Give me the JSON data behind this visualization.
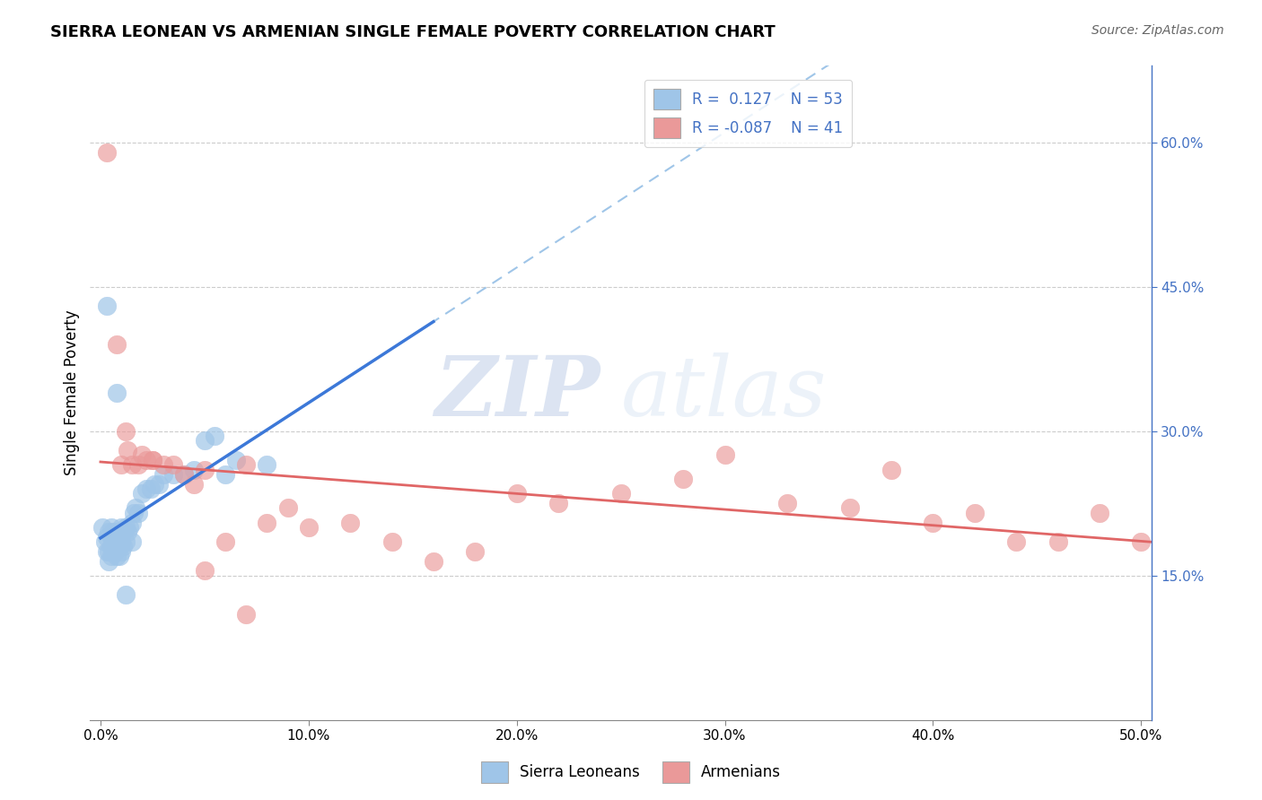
{
  "title": "SIERRA LEONEAN VS ARMENIAN SINGLE FEMALE POVERTY CORRELATION CHART",
  "source": "Source: ZipAtlas.com",
  "ylabel": "Single Female Poverty",
  "xlim": [
    -0.005,
    0.505
  ],
  "ylim": [
    0.0,
    0.68
  ],
  "x_ticks": [
    0.0,
    0.1,
    0.2,
    0.3,
    0.4,
    0.5
  ],
  "x_tick_labels": [
    "0.0%",
    "10.0%",
    "20.0%",
    "30.0%",
    "40.0%",
    "50.0%"
  ],
  "y_ticks_right": [
    0.15,
    0.3,
    0.45,
    0.6
  ],
  "y_tick_labels_right": [
    "15.0%",
    "30.0%",
    "45.0%",
    "60.0%"
  ],
  "blue_color": "#9fc5e8",
  "pink_color": "#ea9999",
  "blue_line_color": "#3c78d8",
  "pink_line_color": "#e06666",
  "blue_dashed_color": "#9fc5e8",
  "watermark_zip": "ZIP",
  "watermark_atlas": "atlas",
  "sierra_x": [
    0.001,
    0.002,
    0.003,
    0.003,
    0.004,
    0.004,
    0.004,
    0.005,
    0.005,
    0.005,
    0.005,
    0.006,
    0.006,
    0.006,
    0.007,
    0.007,
    0.007,
    0.008,
    0.008,
    0.009,
    0.009,
    0.009,
    0.01,
    0.01,
    0.01,
    0.011,
    0.011,
    0.012,
    0.012,
    0.013,
    0.014,
    0.015,
    0.015,
    0.016,
    0.017,
    0.018,
    0.02,
    0.022,
    0.024,
    0.026,
    0.028,
    0.03,
    0.035,
    0.04,
    0.045,
    0.05,
    0.055,
    0.06,
    0.065,
    0.08,
    0.003,
    0.008,
    0.012
  ],
  "sierra_y": [
    0.2,
    0.185,
    0.175,
    0.19,
    0.165,
    0.175,
    0.195,
    0.17,
    0.18,
    0.19,
    0.2,
    0.175,
    0.185,
    0.195,
    0.175,
    0.185,
    0.195,
    0.17,
    0.185,
    0.17,
    0.18,
    0.19,
    0.175,
    0.185,
    0.2,
    0.18,
    0.195,
    0.185,
    0.2,
    0.195,
    0.2,
    0.185,
    0.205,
    0.215,
    0.22,
    0.215,
    0.235,
    0.24,
    0.24,
    0.245,
    0.245,
    0.255,
    0.255,
    0.255,
    0.26,
    0.29,
    0.295,
    0.255,
    0.27,
    0.265,
    0.43,
    0.34,
    0.13
  ],
  "armenian_x": [
    0.003,
    0.008,
    0.01,
    0.012,
    0.013,
    0.015,
    0.018,
    0.02,
    0.022,
    0.025,
    0.03,
    0.035,
    0.04,
    0.045,
    0.05,
    0.06,
    0.07,
    0.08,
    0.09,
    0.1,
    0.12,
    0.14,
    0.16,
    0.18,
    0.2,
    0.22,
    0.25,
    0.28,
    0.3,
    0.33,
    0.36,
    0.38,
    0.4,
    0.42,
    0.44,
    0.46,
    0.48,
    0.5,
    0.025,
    0.05,
    0.07
  ],
  "armenian_y": [
    0.59,
    0.39,
    0.265,
    0.3,
    0.28,
    0.265,
    0.265,
    0.275,
    0.27,
    0.27,
    0.265,
    0.265,
    0.255,
    0.245,
    0.26,
    0.185,
    0.265,
    0.205,
    0.22,
    0.2,
    0.205,
    0.185,
    0.165,
    0.175,
    0.235,
    0.225,
    0.235,
    0.25,
    0.275,
    0.225,
    0.22,
    0.26,
    0.205,
    0.215,
    0.185,
    0.185,
    0.215,
    0.185,
    0.27,
    0.155,
    0.11
  ]
}
